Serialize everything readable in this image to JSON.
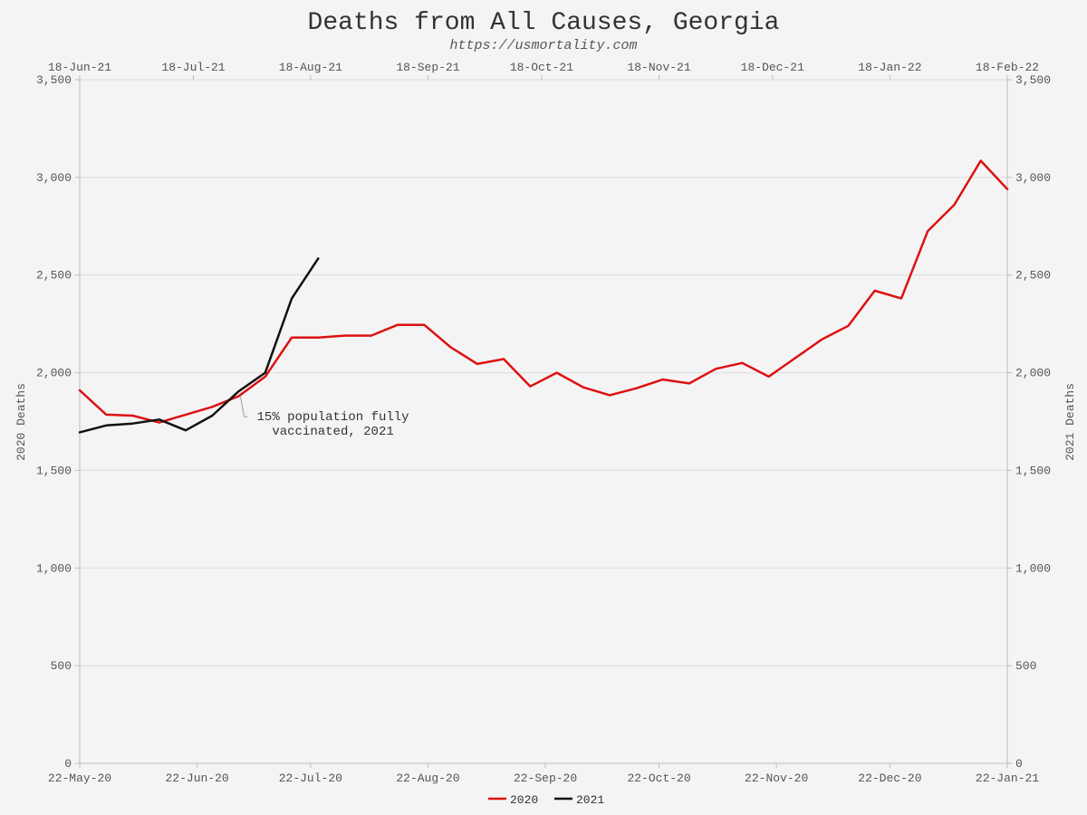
{
  "chart_data": {
    "type": "line",
    "title": "Deaths from All Causes, Georgia",
    "subtitle": "https://usmortality.com",
    "ylabel_left": "2020 Deaths",
    "ylabel_right": "2021 Deaths",
    "ylim": [
      0,
      3500
    ],
    "yticks": [
      0,
      500,
      1000,
      1500,
      2000,
      2500,
      3000,
      3500
    ],
    "ytick_labels": [
      "0",
      "500",
      "1,000",
      "1,500",
      "2,000",
      "2,500",
      "3,000",
      "3,500"
    ],
    "grid": true,
    "legend_position": "bottom-center",
    "x_bottom": {
      "week_range": [
        0,
        35
      ],
      "tick_weeks": [
        0,
        4.43,
        8.71,
        13.14,
        17.57,
        21.86,
        26.29,
        30.57,
        35
      ],
      "tick_labels": [
        "22-May-20",
        "22-Jun-20",
        "22-Jul-20",
        "22-Aug-20",
        "22-Sep-20",
        "22-Oct-20",
        "22-Nov-20",
        "22-Dec-20",
        "22-Jan-21"
      ]
    },
    "x_top": {
      "week_range": [
        0,
        35
      ],
      "tick_weeks": [
        0,
        4.29,
        8.71,
        13.14,
        17.43,
        21.86,
        26.14,
        30.57,
        35
      ],
      "tick_labels": [
        "18-Jun-21",
        "18-Jul-21",
        "18-Aug-21",
        "18-Sep-21",
        "18-Oct-21",
        "18-Nov-21",
        "18-Dec-21",
        "18-Jan-22",
        "18-Feb-22"
      ]
    },
    "series": [
      {
        "name": "2020",
        "color": "#dd1111",
        "axis": "left/bottom",
        "x": [
          0,
          1,
          2,
          3,
          4,
          5,
          6,
          7,
          8,
          9,
          10,
          11,
          12,
          13,
          14,
          15,
          16,
          17,
          18,
          19,
          20,
          21,
          22,
          23,
          24,
          25,
          26,
          27,
          28,
          29,
          30,
          31,
          32,
          33,
          34,
          35
        ],
        "values": [
          1910,
          1785,
          1780,
          1745,
          1785,
          1825,
          1880,
          1980,
          2180,
          2180,
          2190,
          2190,
          2245,
          2245,
          2130,
          2045,
          2070,
          1930,
          2000,
          1925,
          1885,
          1920,
          1965,
          1945,
          2020,
          2050,
          1980,
          2075,
          2170,
          2240,
          2420,
          2380,
          2725,
          2860,
          3085,
          2940
        ]
      },
      {
        "name": "2021",
        "color": "#111111",
        "axis": "right/top",
        "x": [
          0,
          1,
          2,
          3,
          4,
          5,
          6,
          7,
          8,
          9
        ],
        "values": [
          1695,
          1730,
          1740,
          1760,
          1705,
          1780,
          1905,
          2000,
          2380,
          2585
        ]
      }
    ],
    "annotations": [
      {
        "lines": [
          "15% population fully",
          "vaccinated, 2021"
        ],
        "x": 6,
        "y": 1905
      }
    ]
  }
}
